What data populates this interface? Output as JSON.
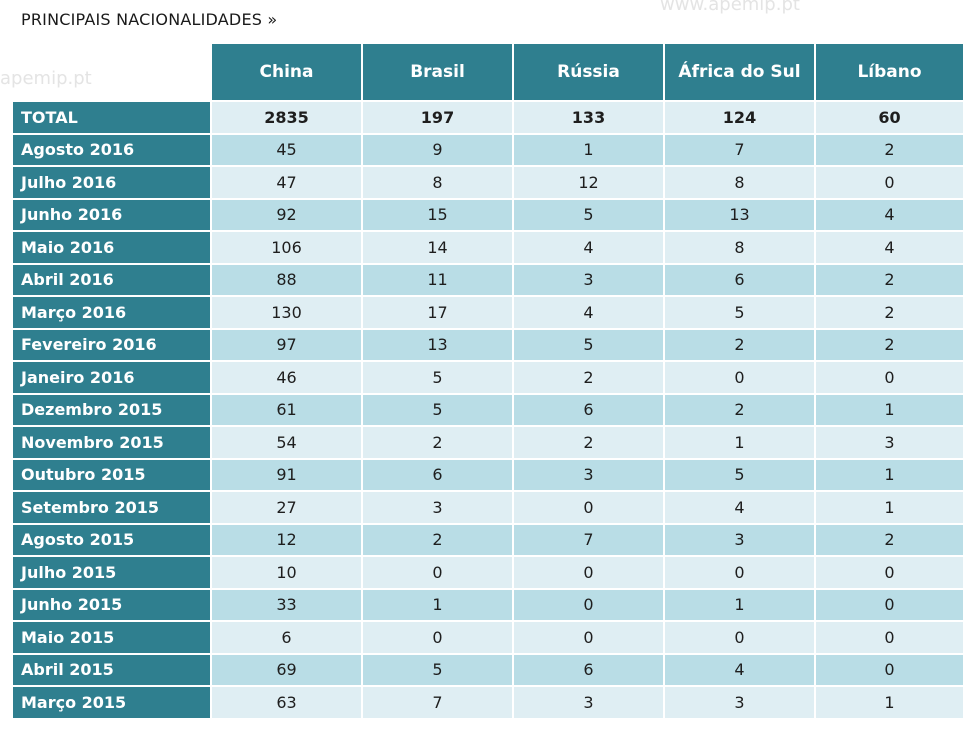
{
  "chart_data": {
    "type": "table",
    "title": "PRINCIPAIS NACIONALIDADES »",
    "watermark": "www.apemip.pt",
    "watermark_short": "apemip.pt",
    "columns": [
      "China",
      "Brasil",
      "Rússia",
      "África do Sul",
      "Líbano"
    ],
    "rows": [
      {
        "label": "TOTAL",
        "values": [
          2835,
          197,
          133,
          124,
          60
        ],
        "total": true
      },
      {
        "label": "Agosto 2016",
        "values": [
          45,
          9,
          1,
          7,
          2
        ]
      },
      {
        "label": "Julho 2016",
        "values": [
          47,
          8,
          12,
          8,
          0
        ]
      },
      {
        "label": "Junho 2016",
        "values": [
          92,
          15,
          5,
          13,
          4
        ]
      },
      {
        "label": "Maio 2016",
        "values": [
          106,
          14,
          4,
          8,
          4
        ]
      },
      {
        "label": "Abril 2016",
        "values": [
          88,
          11,
          3,
          6,
          2
        ]
      },
      {
        "label": "Março 2016",
        "values": [
          130,
          17,
          4,
          5,
          2
        ]
      },
      {
        "label": "Fevereiro 2016",
        "values": [
          97,
          13,
          5,
          2,
          2
        ]
      },
      {
        "label": "Janeiro 2016",
        "values": [
          46,
          5,
          2,
          0,
          0
        ]
      },
      {
        "label": "Dezembro 2015",
        "values": [
          61,
          5,
          6,
          2,
          1
        ]
      },
      {
        "label": "Novembro 2015",
        "values": [
          54,
          2,
          2,
          1,
          3
        ]
      },
      {
        "label": "Outubro 2015",
        "values": [
          91,
          6,
          3,
          5,
          1
        ]
      },
      {
        "label": "Setembro 2015",
        "values": [
          27,
          3,
          0,
          4,
          1
        ]
      },
      {
        "label": "Agosto 2015",
        "values": [
          12,
          2,
          7,
          3,
          2
        ]
      },
      {
        "label": "Julho 2015",
        "values": [
          10,
          0,
          0,
          0,
          0
        ]
      },
      {
        "label": "Junho 2015",
        "values": [
          33,
          1,
          0,
          1,
          0
        ]
      },
      {
        "label": "Maio 2015",
        "values": [
          6,
          0,
          0,
          0,
          0
        ]
      },
      {
        "label": "Abril 2015",
        "values": [
          69,
          5,
          6,
          4,
          0
        ]
      },
      {
        "label": "Março 2015",
        "values": [
          63,
          7,
          3,
          3,
          1
        ]
      }
    ],
    "colors": {
      "header": "#2f7f8f",
      "row_light": "#dfeef3",
      "row_dark": "#b9dde6"
    }
  }
}
